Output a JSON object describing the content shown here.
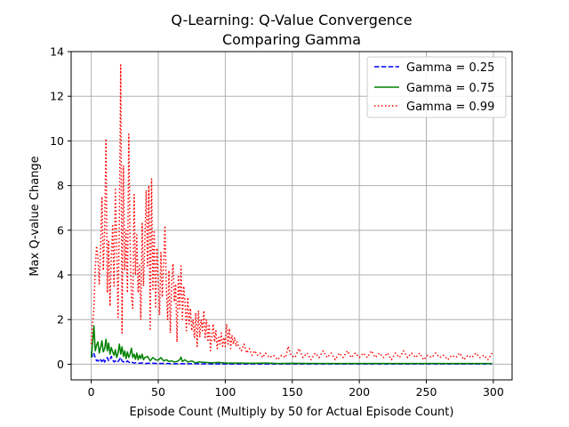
{
  "chart_data": {
    "type": "line",
    "title": "Q-Learning: Q-Value Convergence",
    "subtitle": "Comparing Gamma",
    "xlabel": "Episode Count (Multiply by 50 for Actual Episode Count)",
    "ylabel": "Max Q-value Change",
    "xlim": [
      -15,
      314
    ],
    "ylim": [
      -0.7,
      14
    ],
    "xticks": [
      0,
      50,
      100,
      150,
      200,
      250,
      300
    ],
    "yticks": [
      0,
      2,
      4,
      6,
      8,
      10,
      12,
      14
    ],
    "grid": true,
    "legend_position": "top-right",
    "series": [
      {
        "name": "Gamma = 0.25",
        "color": "#0000ff",
        "style": "dashed",
        "points": [
          [
            0,
            0.55
          ],
          [
            1,
            0.35
          ],
          [
            2,
            0.48
          ],
          [
            3,
            0.3
          ],
          [
            4,
            0.15
          ],
          [
            5,
            0.18
          ],
          [
            6,
            0.1
          ],
          [
            7,
            0.2
          ],
          [
            8,
            0.12
          ],
          [
            9,
            0.25
          ],
          [
            10,
            0.1
          ],
          [
            11,
            0.18
          ],
          [
            12,
            0.3
          ],
          [
            13,
            0.15
          ],
          [
            14,
            0.22
          ],
          [
            15,
            0.35
          ],
          [
            16,
            0.2
          ],
          [
            17,
            0.1
          ],
          [
            18,
            0.15
          ],
          [
            19,
            0.08
          ],
          [
            20,
            0.12
          ],
          [
            21,
            0.2
          ],
          [
            22,
            0.3
          ],
          [
            23,
            0.15
          ],
          [
            24,
            0.1
          ],
          [
            25,
            0.12
          ],
          [
            26,
            0.08
          ],
          [
            27,
            0.15
          ],
          [
            28,
            0.1
          ],
          [
            29,
            0.06
          ],
          [
            30,
            0.1
          ],
          [
            32,
            0.05
          ],
          [
            34,
            0.08
          ],
          [
            36,
            0.04
          ],
          [
            38,
            0.06
          ],
          [
            40,
            0.03
          ],
          [
            45,
            0.05
          ],
          [
            50,
            0.03
          ],
          [
            55,
            0.04
          ],
          [
            60,
            0.02
          ],
          [
            70,
            0.02
          ],
          [
            80,
            0.02
          ],
          [
            100,
            0.01
          ],
          [
            150,
            0.01
          ],
          [
            200,
            0.01
          ],
          [
            250,
            0.01
          ],
          [
            299,
            0.01
          ]
        ]
      },
      {
        "name": "Gamma = 0.75",
        "color": "#008000",
        "style": "solid",
        "points": [
          [
            0,
            0.3
          ],
          [
            1,
            0.9
          ],
          [
            2,
            1.72
          ],
          [
            3,
            0.6
          ],
          [
            4,
            0.85
          ],
          [
            5,
            1.0
          ],
          [
            6,
            0.5
          ],
          [
            7,
            0.75
          ],
          [
            8,
            1.05
          ],
          [
            9,
            0.55
          ],
          [
            10,
            0.7
          ],
          [
            11,
            1.12
          ],
          [
            12,
            0.6
          ],
          [
            13,
            0.95
          ],
          [
            14,
            0.45
          ],
          [
            15,
            0.75
          ],
          [
            16,
            0.55
          ],
          [
            17,
            0.4
          ],
          [
            18,
            0.65
          ],
          [
            19,
            0.3
          ],
          [
            20,
            0.5
          ],
          [
            21,
            0.9
          ],
          [
            22,
            0.45
          ],
          [
            23,
            0.78
          ],
          [
            24,
            0.35
          ],
          [
            25,
            0.6
          ],
          [
            26,
            0.25
          ],
          [
            27,
            0.55
          ],
          [
            28,
            0.3
          ],
          [
            29,
            0.45
          ],
          [
            30,
            0.72
          ],
          [
            31,
            0.3
          ],
          [
            32,
            0.45
          ],
          [
            33,
            0.22
          ],
          [
            34,
            0.5
          ],
          [
            35,
            0.2
          ],
          [
            36,
            0.4
          ],
          [
            37,
            0.25
          ],
          [
            38,
            0.45
          ],
          [
            39,
            0.2
          ],
          [
            40,
            0.3
          ],
          [
            42,
            0.35
          ],
          [
            44,
            0.15
          ],
          [
            46,
            0.3
          ],
          [
            48,
            0.2
          ],
          [
            50,
            0.18
          ],
          [
            52,
            0.3
          ],
          [
            54,
            0.15
          ],
          [
            56,
            0.2
          ],
          [
            58,
            0.12
          ],
          [
            60,
            0.15
          ],
          [
            62,
            0.1
          ],
          [
            64,
            0.12
          ],
          [
            66,
            0.2
          ],
          [
            67,
            0.32
          ],
          [
            68,
            0.12
          ],
          [
            70,
            0.2
          ],
          [
            72,
            0.1
          ],
          [
            75,
            0.15
          ],
          [
            78,
            0.06
          ],
          [
            80,
            0.1
          ],
          [
            85,
            0.08
          ],
          [
            90,
            0.06
          ],
          [
            95,
            0.08
          ],
          [
            100,
            0.05
          ],
          [
            110,
            0.05
          ],
          [
            120,
            0.04
          ],
          [
            130,
            0.05
          ],
          [
            140,
            0.03
          ],
          [
            150,
            0.04
          ],
          [
            170,
            0.03
          ],
          [
            200,
            0.03
          ],
          [
            230,
            0.03
          ],
          [
            260,
            0.03
          ],
          [
            299,
            0.03
          ]
        ]
      },
      {
        "name": "Gamma = 0.99",
        "color": "#ff0000",
        "style": "dotted",
        "points": [
          [
            0,
            0.9
          ],
          [
            1,
            1.8
          ],
          [
            2,
            2.5
          ],
          [
            3,
            4.3
          ],
          [
            4,
            5.3
          ],
          [
            5,
            4.8
          ],
          [
            6,
            3.6
          ],
          [
            7,
            5.2
          ],
          [
            8,
            7.5
          ],
          [
            9,
            4.2
          ],
          [
            10,
            6.0
          ],
          [
            11,
            10.1
          ],
          [
            12,
            3.2
          ],
          [
            13,
            5.5
          ],
          [
            14,
            2.6
          ],
          [
            15,
            4.8
          ],
          [
            16,
            6.2
          ],
          [
            17,
            3.5
          ],
          [
            18,
            7.9
          ],
          [
            19,
            5.4
          ],
          [
            20,
            2.1
          ],
          [
            21,
            6.5
          ],
          [
            22,
            13.4
          ],
          [
            23,
            1.4
          ],
          [
            24,
            8.9
          ],
          [
            25,
            4.2
          ],
          [
            26,
            6.0
          ],
          [
            27,
            3.2
          ],
          [
            28,
            10.3
          ],
          [
            29,
            5.5
          ],
          [
            30,
            3.0
          ],
          [
            31,
            2.5
          ],
          [
            32,
            7.6
          ],
          [
            33,
            4.0
          ],
          [
            34,
            5.8
          ],
          [
            35,
            3.2
          ],
          [
            36,
            4.5
          ],
          [
            37,
            2.0
          ],
          [
            38,
            6.3
          ],
          [
            39,
            3.5
          ],
          [
            40,
            5.5
          ],
          [
            41,
            7.8
          ],
          [
            42,
            4.4
          ],
          [
            43,
            8.0
          ],
          [
            44,
            1.5
          ],
          [
            45,
            8.3
          ],
          [
            46,
            3.3
          ],
          [
            47,
            6.0
          ],
          [
            48,
            2.5
          ],
          [
            49,
            5.2
          ],
          [
            50,
            3.8
          ],
          [
            51,
            2.2
          ],
          [
            52,
            5.0
          ],
          [
            53,
            3.0
          ],
          [
            54,
            4.5
          ],
          [
            55,
            6.2
          ],
          [
            56,
            3.5
          ],
          [
            57,
            2.0
          ],
          [
            58,
            4.2
          ],
          [
            59,
            1.4
          ],
          [
            60,
            3.7
          ],
          [
            61,
            4.5
          ],
          [
            62,
            2.8
          ],
          [
            63,
            3.6
          ],
          [
            64,
            1.0
          ],
          [
            65,
            4.0
          ],
          [
            66,
            2.5
          ],
          [
            67,
            4.4
          ],
          [
            68,
            2.0
          ],
          [
            69,
            3.5
          ],
          [
            70,
            2.8
          ],
          [
            71,
            1.5
          ],
          [
            72,
            3.0
          ],
          [
            73,
            1.8
          ],
          [
            74,
            2.5
          ],
          [
            75,
            1.5
          ],
          [
            76,
            2.0
          ],
          [
            77,
            1.2
          ],
          [
            78,
            2.3
          ],
          [
            79,
            0.8
          ],
          [
            80,
            2.4
          ],
          [
            81,
            1.2
          ],
          [
            82,
            2.0
          ],
          [
            83,
            1.5
          ],
          [
            84,
            2.4
          ],
          [
            85,
            1.2
          ],
          [
            86,
            2.0
          ],
          [
            87,
            1.0
          ],
          [
            88,
            1.8
          ],
          [
            89,
            0.6
          ],
          [
            90,
            1.3
          ],
          [
            91,
            1.8
          ],
          [
            92,
            1.0
          ],
          [
            93,
            1.5
          ],
          [
            94,
            0.7
          ],
          [
            95,
            1.2
          ],
          [
            96,
            0.9
          ],
          [
            97,
            1.4
          ],
          [
            98,
            0.8
          ],
          [
            99,
            1.2
          ],
          [
            100,
            0.8
          ],
          [
            101,
            1.8
          ],
          [
            102,
            0.9
          ],
          [
            103,
            1.6
          ],
          [
            104,
            0.7
          ],
          [
            105,
            1.3
          ],
          [
            106,
            0.9
          ],
          [
            107,
            1.2
          ],
          [
            108,
            0.8
          ],
          [
            109,
            1.0
          ],
          [
            110,
            0.8
          ],
          [
            112,
            0.6
          ],
          [
            114,
            0.9
          ],
          [
            116,
            0.5
          ],
          [
            118,
            0.7
          ],
          [
            120,
            0.4
          ],
          [
            122,
            0.6
          ],
          [
            124,
            0.4
          ],
          [
            126,
            0.5
          ],
          [
            128,
            0.3
          ],
          [
            130,
            0.5
          ],
          [
            133,
            0.3
          ],
          [
            136,
            0.4
          ],
          [
            139,
            0.2
          ],
          [
            142,
            0.4
          ],
          [
            145,
            0.3
          ],
          [
            147,
            0.8
          ],
          [
            149,
            0.4
          ],
          [
            152,
            0.3
          ],
          [
            155,
            0.7
          ],
          [
            158,
            0.3
          ],
          [
            161,
            0.5
          ],
          [
            164,
            0.2
          ],
          [
            167,
            0.5
          ],
          [
            170,
            0.3
          ],
          [
            173,
            0.6
          ],
          [
            176,
            0.3
          ],
          [
            179,
            0.5
          ],
          [
            182,
            0.2
          ],
          [
            185,
            0.5
          ],
          [
            188,
            0.3
          ],
          [
            191,
            0.6
          ],
          [
            194,
            0.3
          ],
          [
            197,
            0.5
          ],
          [
            200,
            0.3
          ],
          [
            203,
            0.5
          ],
          [
            206,
            0.3
          ],
          [
            209,
            0.6
          ],
          [
            212,
            0.3
          ],
          [
            215,
            0.5
          ],
          [
            218,
            0.3
          ],
          [
            221,
            0.5
          ],
          [
            224,
            0.2
          ],
          [
            227,
            0.5
          ],
          [
            230,
            0.3
          ],
          [
            233,
            0.6
          ],
          [
            236,
            0.3
          ],
          [
            239,
            0.5
          ],
          [
            242,
            0.3
          ],
          [
            245,
            0.5
          ],
          [
            248,
            0.2
          ],
          [
            251,
            0.4
          ],
          [
            254,
            0.3
          ],
          [
            257,
            0.5
          ],
          [
            260,
            0.3
          ],
          [
            263,
            0.4
          ],
          [
            266,
            0.2
          ],
          [
            269,
            0.4
          ],
          [
            272,
            0.3
          ],
          [
            275,
            0.5
          ],
          [
            278,
            0.2
          ],
          [
            281,
            0.4
          ],
          [
            284,
            0.3
          ],
          [
            287,
            0.5
          ],
          [
            290,
            0.3
          ],
          [
            293,
            0.4
          ],
          [
            296,
            0.2
          ],
          [
            299,
            0.5
          ]
        ]
      }
    ]
  }
}
